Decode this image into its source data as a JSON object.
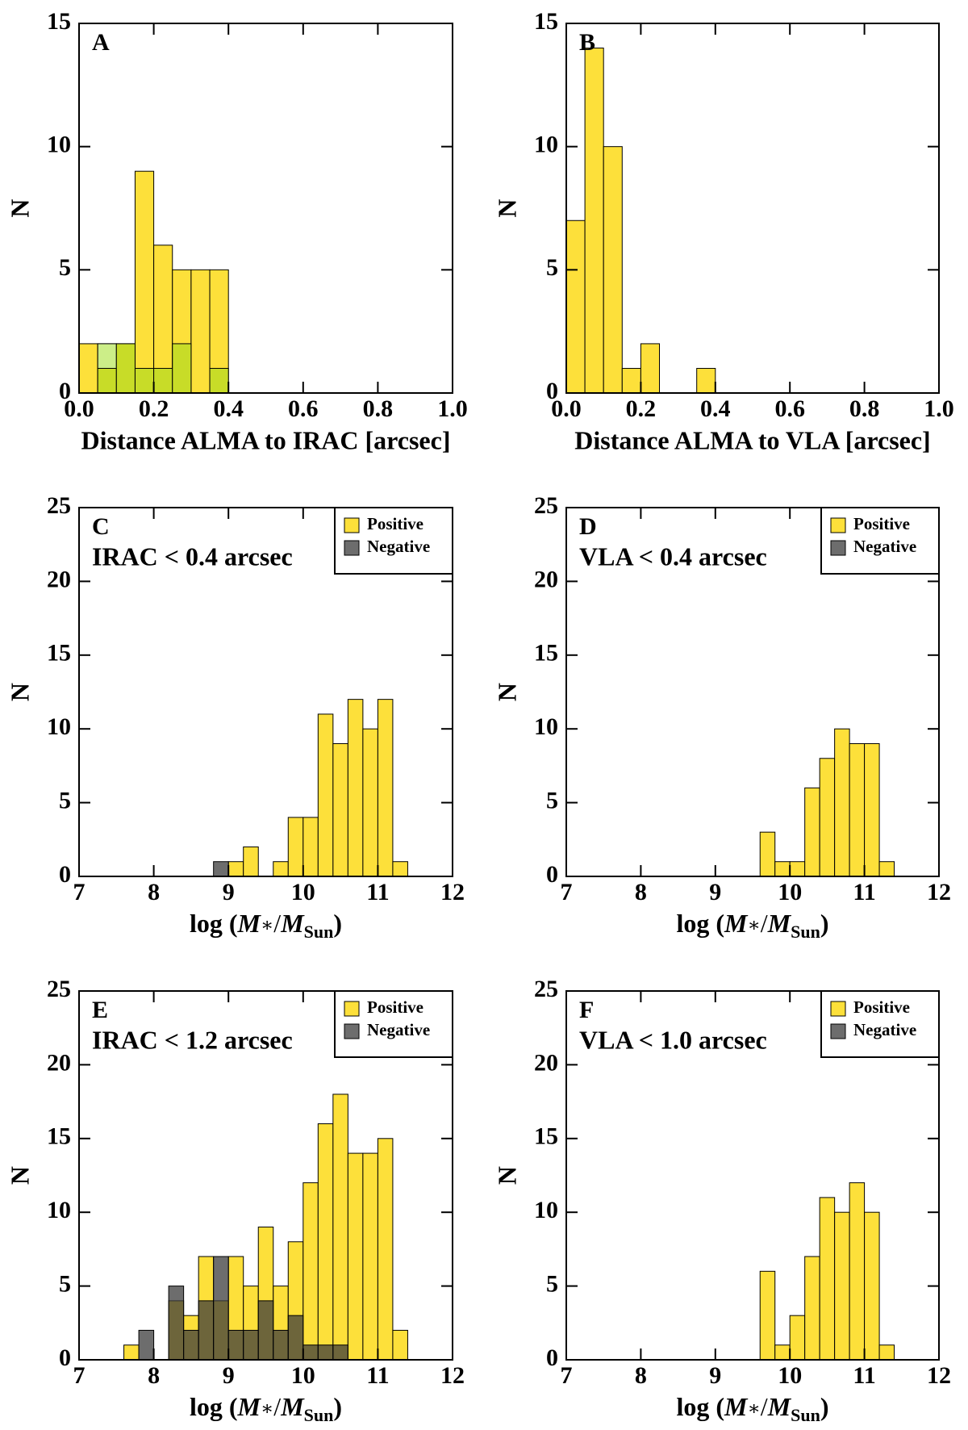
{
  "chart_data": [
    {
      "type": "histogram",
      "label": "A",
      "xlabel": "Distance ALMA to IRAC [arcsec]",
      "ylabel": "N",
      "bins": [
        0,
        0.05,
        0.1,
        0.15,
        0.2,
        0.25,
        0.3,
        0.35,
        0.4
      ],
      "series": [
        {
          "color": "#fde03a",
          "values": [
            2,
            2,
            2,
            9,
            6,
            5,
            5,
            5
          ]
        },
        {
          "color": "#ccee88",
          "values": [
            0,
            2,
            0,
            0,
            0,
            0,
            0,
            0
          ]
        },
        {
          "color": "#c8dc28",
          "values": [
            0,
            1,
            2,
            1,
            1,
            2,
            0,
            1
          ]
        }
      ],
      "xlim": [
        0,
        1
      ],
      "xticks": [
        {
          "value": 0,
          "label": "0.0"
        },
        {
          "value": 0.2,
          "label": "0.2"
        },
        {
          "value": 0.4,
          "label": "0.4"
        },
        {
          "value": 0.6,
          "label": "0.6"
        },
        {
          "value": 0.8,
          "label": "0.8"
        },
        {
          "value": 1,
          "label": "1.0"
        }
      ],
      "ylim": [
        0,
        15
      ],
      "yticks": [
        0,
        5,
        10,
        15
      ]
    },
    {
      "type": "histogram",
      "label": "B",
      "xlabel": "Distance ALMA to VLA [arcsec]",
      "ylabel": "N",
      "bins": [
        0,
        0.05,
        0.1,
        0.15,
        0.2,
        0.25,
        0.3,
        0.35,
        0.4
      ],
      "series": [
        {
          "color": "#fde03a",
          "values": [
            7,
            14,
            10,
            1,
            2,
            0,
            0,
            1
          ]
        }
      ],
      "xlim": [
        0,
        1
      ],
      "xticks": [
        {
          "value": 0,
          "label": "0.0"
        },
        {
          "value": 0.2,
          "label": "0.2"
        },
        {
          "value": 0.4,
          "label": "0.4"
        },
        {
          "value": 0.6,
          "label": "0.6"
        },
        {
          "value": 0.8,
          "label": "0.8"
        },
        {
          "value": 1,
          "label": "1.0"
        }
      ],
      "ylim": [
        0,
        15
      ],
      "yticks": [
        0,
        5,
        10,
        15
      ]
    },
    {
      "type": "histogram",
      "label": "C",
      "annotation": "IRAC < 0.4 arcsec",
      "xlabel_parts": [
        "log (",
        "M",
        "∗",
        "/",
        "M",
        "Sun",
        ")"
      ],
      "ylabel": "N",
      "bins": [
        7.6,
        7.8,
        8.0,
        8.2,
        8.4,
        8.6,
        8.8,
        9.0,
        9.2,
        9.4,
        9.6,
        9.8,
        10.0,
        10.2,
        10.4,
        10.6,
        10.8,
        11.0,
        11.2,
        11.4
      ],
      "series": [
        {
          "name": "Positive",
          "color": "#fde03a",
          "values": [
            0,
            0,
            0,
            0,
            0,
            0,
            0,
            1,
            2,
            0,
            1,
            4,
            4,
            11,
            9,
            12,
            10,
            12,
            1
          ]
        },
        {
          "name": "Negative",
          "color": "rgba(60,60,60,0.75)",
          "values": [
            0,
            0,
            0,
            0,
            0,
            0,
            1,
            0,
            0,
            0,
            0,
            0,
            0,
            0,
            0,
            0,
            0,
            0,
            0
          ]
        }
      ],
      "legend": "upper right",
      "xlim": [
        7,
        12
      ],
      "xticks": [
        7,
        8,
        9,
        10,
        11,
        12
      ],
      "ylim": [
        0,
        25
      ],
      "yticks": [
        0,
        5,
        10,
        15,
        20,
        25
      ]
    },
    {
      "type": "histogram",
      "label": "D",
      "annotation": "VLA < 0.4 arcsec",
      "xlabel_parts": [
        "log (",
        "M",
        "∗",
        "/",
        "M",
        "Sun",
        ")"
      ],
      "ylabel": "N",
      "bins": [
        7.6,
        7.8,
        8.0,
        8.2,
        8.4,
        8.6,
        8.8,
        9.0,
        9.2,
        9.4,
        9.6,
        9.8,
        10.0,
        10.2,
        10.4,
        10.6,
        10.8,
        11.0,
        11.2,
        11.4
      ],
      "series": [
        {
          "name": "Positive",
          "color": "#fde03a",
          "values": [
            0,
            0,
            0,
            0,
            0,
            0,
            0,
            0,
            0,
            0,
            3,
            1,
            1,
            6,
            8,
            10,
            9,
            9,
            1
          ]
        },
        {
          "name": "Negative",
          "color": "rgba(60,60,60,0.75)",
          "values": [
            0,
            0,
            0,
            0,
            0,
            0,
            0,
            0,
            0,
            0,
            0,
            0,
            0,
            0,
            0,
            0,
            0,
            0,
            0
          ]
        }
      ],
      "legend": "upper right",
      "xlim": [
        7,
        12
      ],
      "xticks": [
        7,
        8,
        9,
        10,
        11,
        12
      ],
      "ylim": [
        0,
        25
      ],
      "yticks": [
        0,
        5,
        10,
        15,
        20,
        25
      ]
    },
    {
      "type": "histogram",
      "label": "E",
      "annotation": "IRAC < 1.2 arcsec",
      "xlabel_parts": [
        "log (",
        "M",
        "∗",
        "/",
        "M",
        "Sun",
        ")"
      ],
      "ylabel": "N",
      "bins": [
        7.6,
        7.8,
        8.0,
        8.2,
        8.4,
        8.6,
        8.8,
        9.0,
        9.2,
        9.4,
        9.6,
        9.8,
        10.0,
        10.2,
        10.4,
        10.6,
        10.8,
        11.0,
        11.2,
        11.4
      ],
      "series": [
        {
          "name": "Positive",
          "color": "#fde03a",
          "values": [
            1,
            0,
            0,
            4,
            3,
            7,
            4,
            7,
            5,
            9,
            5,
            8,
            12,
            16,
            18,
            14,
            14,
            15,
            2
          ]
        },
        {
          "name": "Negative",
          "color": "rgba(60,60,60,0.75)",
          "values": [
            0,
            2,
            0,
            5,
            2,
            4,
            7,
            2,
            2,
            4,
            2,
            3,
            1,
            1,
            1,
            0,
            0,
            0,
            0
          ]
        }
      ],
      "legend": "upper right",
      "xlim": [
        7,
        12
      ],
      "xticks": [
        7,
        8,
        9,
        10,
        11,
        12
      ],
      "ylim": [
        0,
        25
      ],
      "yticks": [
        0,
        5,
        10,
        15,
        20,
        25
      ]
    },
    {
      "type": "histogram",
      "label": "F",
      "annotation": "VLA < 1.0 arcsec",
      "xlabel_parts": [
        "log (",
        "M",
        "∗",
        "/",
        "M",
        "Sun",
        ")"
      ],
      "ylabel": "N",
      "bins": [
        7.6,
        7.8,
        8.0,
        8.2,
        8.4,
        8.6,
        8.8,
        9.0,
        9.2,
        9.4,
        9.6,
        9.8,
        10.0,
        10.2,
        10.4,
        10.6,
        10.8,
        11.0,
        11.2,
        11.4
      ],
      "series": [
        {
          "name": "Positive",
          "color": "#fde03a",
          "values": [
            0,
            0,
            0,
            0,
            0,
            0,
            0,
            0,
            0,
            0,
            6,
            1,
            3,
            7,
            11,
            10,
            12,
            10,
            1
          ]
        },
        {
          "name": "Negative",
          "color": "rgba(60,60,60,0.75)",
          "values": [
            0,
            0,
            0,
            0,
            0,
            0,
            0,
            0,
            0,
            0,
            0,
            0,
            0,
            0,
            0,
            0,
            0,
            0,
            0
          ]
        }
      ],
      "legend": "upper right",
      "xlim": [
        7,
        12
      ],
      "xticks": [
        7,
        8,
        9,
        10,
        11,
        12
      ],
      "ylim": [
        0,
        25
      ],
      "yticks": [
        0,
        5,
        10,
        15,
        20,
        25
      ]
    }
  ]
}
